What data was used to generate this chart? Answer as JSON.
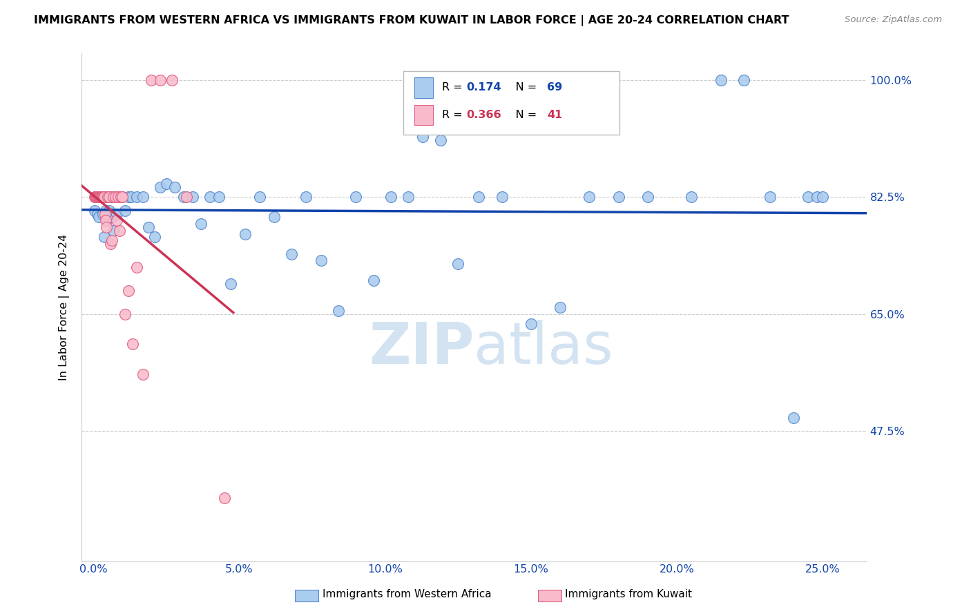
{
  "title": "IMMIGRANTS FROM WESTERN AFRICA VS IMMIGRANTS FROM KUWAIT IN LABOR FORCE | AGE 20-24 CORRELATION CHART",
  "source": "Source: ZipAtlas.com",
  "xlabel_vals": [
    0.0,
    5.0,
    10.0,
    15.0,
    20.0,
    25.0
  ],
  "ylabel_vals": [
    100.0,
    82.5,
    65.0,
    47.5
  ],
  "y_min": 28.0,
  "y_max": 104.0,
  "x_min": -0.4,
  "x_max": 26.5,
  "blue_R": 0.174,
  "blue_N": 69,
  "pink_R": 0.366,
  "pink_N": 41,
  "ylabel_label": "In Labor Force | Age 20-24",
  "legend_label_blue": "Immigrants from Western Africa",
  "legend_label_pink": "Immigrants from Kuwait",
  "blue_dot_face": "#AACCEE",
  "blue_dot_edge": "#5588CC",
  "pink_dot_face": "#F9BBCC",
  "pink_dot_edge": "#E06080",
  "blue_line_color": "#1144AA",
  "pink_line_color": "#CC3355",
  "blue_text_color": "#1144AA",
  "pink_text_color": "#CC3355",
  "blue_scatter_x": [
    0.05,
    0.08,
    0.1,
    0.12,
    0.15,
    0.18,
    0.2,
    0.22,
    0.25,
    0.28,
    0.3,
    0.33,
    0.35,
    0.38,
    0.42,
    0.45,
    0.5,
    0.55,
    0.6,
    0.65,
    0.7,
    0.8,
    0.9,
    1.0,
    1.1,
    1.2,
    1.3,
    1.5,
    1.7,
    1.9,
    2.1,
    2.3,
    2.5,
    2.8,
    3.1,
    3.4,
    3.7,
    4.0,
    4.3,
    4.7,
    5.2,
    5.7,
    6.2,
    6.8,
    7.3,
    7.8,
    8.4,
    9.0,
    9.6,
    10.2,
    10.8,
    11.3,
    11.9,
    12.5,
    13.2,
    14.0,
    15.0,
    16.0,
    17.0,
    18.0,
    19.0,
    20.5,
    21.5,
    22.3,
    23.2,
    24.0,
    24.5,
    24.8,
    25.0
  ],
  "blue_scatter_y": [
    80.5,
    82.5,
    82.5,
    82.5,
    80.0,
    82.5,
    79.5,
    82.5,
    82.5,
    82.5,
    82.5,
    80.0,
    82.5,
    76.5,
    80.5,
    79.0,
    82.5,
    80.5,
    82.5,
    79.5,
    77.5,
    80.0,
    82.5,
    82.5,
    80.5,
    82.5,
    82.5,
    82.5,
    82.5,
    78.0,
    76.5,
    84.0,
    84.5,
    84.0,
    82.5,
    82.5,
    78.5,
    82.5,
    82.5,
    69.5,
    77.0,
    82.5,
    79.5,
    74.0,
    82.5,
    73.0,
    65.5,
    82.5,
    70.0,
    82.5,
    82.5,
    91.5,
    91.0,
    72.5,
    82.5,
    82.5,
    63.5,
    66.0,
    82.5,
    82.5,
    82.5,
    82.5,
    100.0,
    100.0,
    82.5,
    49.5,
    82.5,
    82.5,
    82.5
  ],
  "pink_scatter_x": [
    0.05,
    0.07,
    0.09,
    0.11,
    0.13,
    0.15,
    0.17,
    0.19,
    0.21,
    0.23,
    0.25,
    0.27,
    0.29,
    0.31,
    0.33,
    0.35,
    0.37,
    0.4,
    0.43,
    0.46,
    0.5,
    0.55,
    0.6,
    0.65,
    0.7,
    0.75,
    0.8,
    0.85,
    0.9,
    0.95,
    1.0,
    1.1,
    1.2,
    1.35,
    1.5,
    1.7,
    2.0,
    2.3,
    2.7,
    3.2,
    4.5
  ],
  "pink_scatter_y": [
    82.5,
    82.5,
    82.5,
    82.5,
    82.5,
    82.5,
    82.5,
    82.5,
    82.5,
    82.5,
    82.5,
    82.5,
    82.5,
    82.5,
    82.5,
    82.5,
    82.5,
    80.0,
    79.0,
    78.0,
    82.5,
    82.5,
    75.5,
    76.0,
    82.5,
    82.5,
    79.0,
    82.5,
    77.5,
    82.5,
    82.5,
    65.0,
    68.5,
    60.5,
    72.0,
    56.0,
    100.0,
    100.0,
    100.0,
    82.5,
    37.5
  ],
  "pink_trendline_x0": -0.4,
  "pink_trendline_x1": 4.8,
  "blue_trendline_x0": -0.4,
  "blue_trendline_x1": 26.5
}
